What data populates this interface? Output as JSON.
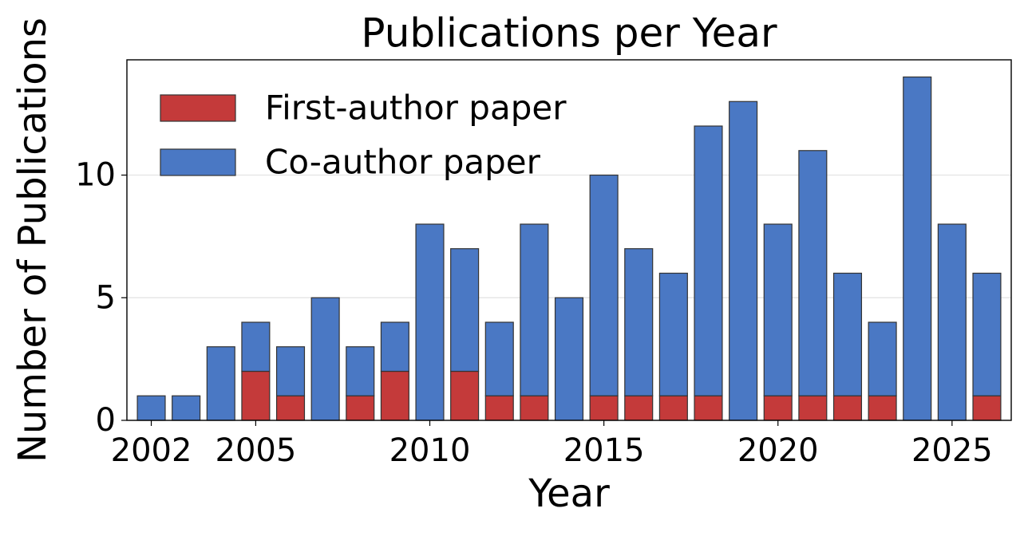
{
  "chart_data": {
    "type": "stacked-bar",
    "title": "Publications per Year",
    "x_label": "Year",
    "y_label": "Number of Publications",
    "x": [
      2002,
      2003,
      2004,
      2005,
      2006,
      2007,
      2008,
      2009,
      2010,
      2011,
      2012,
      2013,
      2014,
      2015,
      2016,
      2017,
      2018,
      2019,
      2020,
      2021,
      2022,
      2023,
      2024,
      2025,
      2026
    ],
    "series": [
      {
        "name": "First-author paper",
        "color": "#c43a3a",
        "values": [
          0,
          0,
          0,
          2,
          1,
          0,
          1,
          2,
          0,
          2,
          1,
          1,
          0,
          1,
          1,
          1,
          1,
          0,
          1,
          1,
          1,
          1,
          0,
          0,
          1
        ]
      },
      {
        "name": "Co-author paper",
        "color": "#4a78c4",
        "values": [
          1,
          1,
          3,
          2,
          2,
          5,
          2,
          2,
          8,
          5,
          3,
          7,
          5,
          9,
          6,
          5,
          11,
          13,
          7,
          10,
          5,
          3,
          14,
          8,
          5
        ]
      }
    ],
    "xlim": [
      2001.3,
      2026.7
    ],
    "xticks": [
      2002,
      2005,
      2010,
      2015,
      2020,
      2025
    ],
    "ylim": [
      0,
      14.7
    ],
    "yticks": [
      0,
      5,
      10
    ],
    "grid": true,
    "legend": "upper-left"
  }
}
